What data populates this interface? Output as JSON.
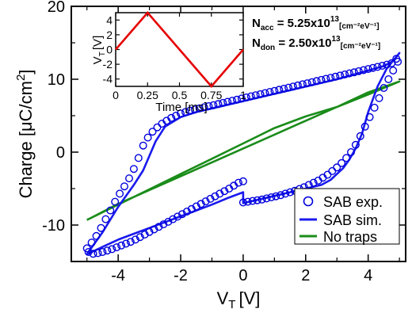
{
  "chart_data": [
    {
      "type": "line",
      "xlabel": "V",
      "xlabel_sub": "T",
      "xlabel_unit": "[V]",
      "ylabel": "Charge [μC/cm",
      "ylabel_sup": "2",
      "ylabel_end": "]",
      "xlim": [
        -5.5,
        5.2
      ],
      "ylim": [
        -15,
        20
      ],
      "xticks": [
        -4,
        -2,
        0,
        2,
        4
      ],
      "xtick_labels": [
        "-4",
        "-2",
        "0",
        "2",
        "4"
      ],
      "yticks": [
        -10,
        0,
        10,
        20
      ],
      "ytick_labels": [
        "-10",
        "0",
        "10",
        "20"
      ],
      "legend_position": "bottom-right",
      "annotations": [
        {
          "text": "N",
          "sub": "acc",
          "text2": " = 5.25x10",
          "sup": "13",
          "unit": "[cm⁻²eV⁻¹]"
        },
        {
          "text": "N",
          "sub": "don",
          "text2": " = 2.50x10",
          "sup": "13",
          "unit": "[cm⁻²eV⁻¹]"
        }
      ],
      "series": [
        {
          "name": "SAB exp.",
          "style": "markers",
          "color": "#0000dd",
          "x": [
            -5.0,
            -4.85,
            -4.7,
            -4.55,
            -4.4,
            -4.25,
            -4.1,
            -3.95,
            -3.8,
            -3.65,
            -3.5,
            -3.35,
            -3.2,
            -3.05,
            -2.9,
            -2.75,
            -2.6,
            -2.45,
            -2.3,
            -2.15,
            -2.0,
            -1.85,
            -1.7,
            -1.55,
            -1.4,
            -1.25,
            -1.1,
            -0.95,
            -0.8,
            -0.65,
            -0.5,
            -0.35,
            -0.2,
            -0.05,
            0.1,
            0.25,
            0.4,
            0.55,
            0.7,
            0.85,
            1.0,
            1.15,
            1.3,
            1.45,
            1.6,
            1.75,
            1.9,
            2.05,
            2.2,
            2.35,
            2.5,
            2.65,
            2.8,
            2.95,
            3.1,
            3.25,
            3.4,
            3.55,
            3.7,
            3.85,
            4.0,
            4.15,
            4.3,
            4.45,
            4.6,
            4.75,
            4.9,
            4.95,
            4.8,
            4.65,
            4.5,
            4.35,
            4.2,
            4.05,
            3.9,
            3.75,
            3.6,
            3.45,
            3.3,
            3.15,
            3.0,
            2.85,
            2.7,
            2.55,
            2.4,
            2.25,
            2.1,
            1.95,
            1.8,
            1.65,
            1.5,
            1.35,
            1.2,
            1.05,
            0.9,
            0.75,
            0.6,
            0.45,
            0.3,
            0.15,
            0.0,
            0.0,
            -0.15,
            -0.3,
            -0.45,
            -0.6,
            -0.75,
            -0.9,
            -1.05,
            -1.2,
            -1.35,
            -1.5,
            -1.65,
            -1.8,
            -1.95,
            -2.1,
            -2.25,
            -2.4,
            -2.55,
            -2.7,
            -2.85,
            -3.0,
            -3.15,
            -3.3,
            -3.45,
            -3.6,
            -3.75,
            -3.9,
            -4.05,
            -4.2,
            -4.35,
            -4.5,
            -4.65,
            -4.8,
            -4.95
          ],
          "y": [
            -13.2,
            -12.4,
            -11.5,
            -10.4,
            -9.2,
            -8.0,
            -6.8,
            -5.7,
            -4.7,
            -3.6,
            -2.3,
            -0.8,
            0.9,
            2.0,
            2.8,
            3.4,
            3.9,
            4.3,
            4.7,
            5.0,
            5.3,
            5.5,
            5.7,
            5.85,
            6.0,
            6.15,
            6.3,
            6.45,
            6.6,
            6.75,
            6.9,
            7.05,
            7.2,
            7.35,
            7.5,
            7.65,
            7.8,
            7.95,
            8.1,
            8.25,
            8.4,
            8.55,
            8.7,
            8.85,
            9.0,
            9.15,
            9.3,
            9.45,
            9.6,
            9.75,
            9.9,
            10.05,
            10.2,
            10.35,
            10.5,
            10.65,
            10.8,
            10.95,
            11.1,
            11.25,
            11.4,
            11.55,
            11.7,
            11.85,
            12.0,
            12.2,
            12.8,
            12.4,
            11.2,
            10.0,
            8.8,
            7.4,
            6.1,
            4.8,
            3.5,
            2.2,
            1.0,
            0.0,
            -0.8,
            -1.5,
            -2.1,
            -2.6,
            -3.1,
            -3.5,
            -3.9,
            -4.2,
            -4.5,
            -4.8,
            -5.05,
            -5.3,
            -5.5,
            -5.7,
            -5.9,
            -6.05,
            -6.2,
            -6.35,
            -6.5,
            -6.6,
            -6.7,
            -6.8,
            -6.9,
            -4.0,
            -4.2,
            -4.6,
            -5.0,
            -5.35,
            -5.7,
            -6.05,
            -6.4,
            -6.75,
            -7.1,
            -7.45,
            -7.8,
            -8.15,
            -8.5,
            -8.85,
            -9.2,
            -9.55,
            -9.9,
            -10.25,
            -10.6,
            -10.95,
            -11.3,
            -11.65,
            -12.0,
            -12.3,
            -12.55,
            -12.8,
            -13.05,
            -13.3,
            -13.5,
            -13.7,
            -13.85,
            -13.95,
            -13.7
          ]
        },
        {
          "name": "SAB sim.",
          "style": "line",
          "color": "#1a1aee",
          "x": [
            -5.0,
            -4.5,
            -4.0,
            -3.5,
            -3.2,
            -3.0,
            -2.8,
            -2.5,
            -2.0,
            -1.5,
            -1.0,
            -0.5,
            0.0,
            0.5,
            1.0,
            1.5,
            2.0,
            2.5,
            3.0,
            3.5,
            4.0,
            4.5,
            4.8,
            5.0,
            4.6,
            4.3,
            4.0,
            3.8,
            3.6,
            3.4,
            3.2,
            3.0,
            2.8,
            2.5,
            2.0,
            1.5,
            1.0,
            0.5,
            0.0,
            0.0,
            -0.5,
            -1.0,
            -1.5,
            -2.0,
            -2.5,
            -3.0,
            -3.5,
            -4.0,
            -4.5,
            -5.0
          ],
          "y": [
            -14.0,
            -11.0,
            -7.5,
            -4.5,
            -2.5,
            -0.5,
            1.5,
            3.5,
            4.8,
            5.5,
            6.0,
            6.5,
            7.0,
            7.5,
            8.0,
            8.5,
            9.0,
            9.5,
            10.0,
            10.6,
            11.2,
            11.8,
            12.5,
            13.6,
            11.5,
            9.0,
            5.5,
            2.5,
            0.5,
            -1.0,
            -2.2,
            -3.0,
            -3.8,
            -4.5,
            -5.0,
            -5.5,
            -6.0,
            -6.5,
            -7.0,
            -5.5,
            -6.3,
            -7.2,
            -8.0,
            -8.8,
            -9.6,
            -10.4,
            -11.2,
            -12.0,
            -13.0,
            -14.0
          ]
        },
        {
          "name": "No traps",
          "style": "line",
          "color": "#1a8c1a",
          "x": [
            -5.0,
            -4.0,
            -3.0,
            -2.0,
            -1.0,
            0.0,
            1.0,
            2.0,
            3.0,
            4.0,
            4.5,
            5.0,
            4.0,
            3.0,
            2.0,
            1.0,
            0.0,
            -1.0,
            -2.0,
            -3.0,
            -4.0,
            -5.0
          ],
          "y": [
            -9.3,
            -7.2,
            -5.1,
            -3.0,
            -0.9,
            1.2,
            3.3,
            4.9,
            6.2,
            7.9,
            8.8,
            9.7,
            8.2,
            6.2,
            4.3,
            2.4,
            0.5,
            -1.4,
            -3.3,
            -5.2,
            -7.1,
            -9.3
          ]
        }
      ]
    },
    {
      "type": "line",
      "xlabel": "Time [ms]",
      "ylabel": "V",
      "ylabel_sub": "T",
      "ylabel_unit": "[V]",
      "xlim": [
        0,
        1
      ],
      "ylim": [
        -5,
        5
      ],
      "xticks": [
        0,
        0.25,
        0.5,
        0.75,
        1
      ],
      "xtick_labels": [
        "0",
        "0.25",
        "0.5",
        "0.75",
        "1"
      ],
      "yticks": [
        -4,
        -2,
        0,
        2,
        4
      ],
      "ytick_labels": [
        "-4",
        "-2",
        "0",
        "2",
        "4"
      ],
      "series": [
        {
          "color": "#e60000",
          "x": [
            0,
            0.25,
            0.75,
            1.0
          ],
          "y": [
            0,
            5,
            -5,
            0
          ]
        }
      ]
    }
  ]
}
